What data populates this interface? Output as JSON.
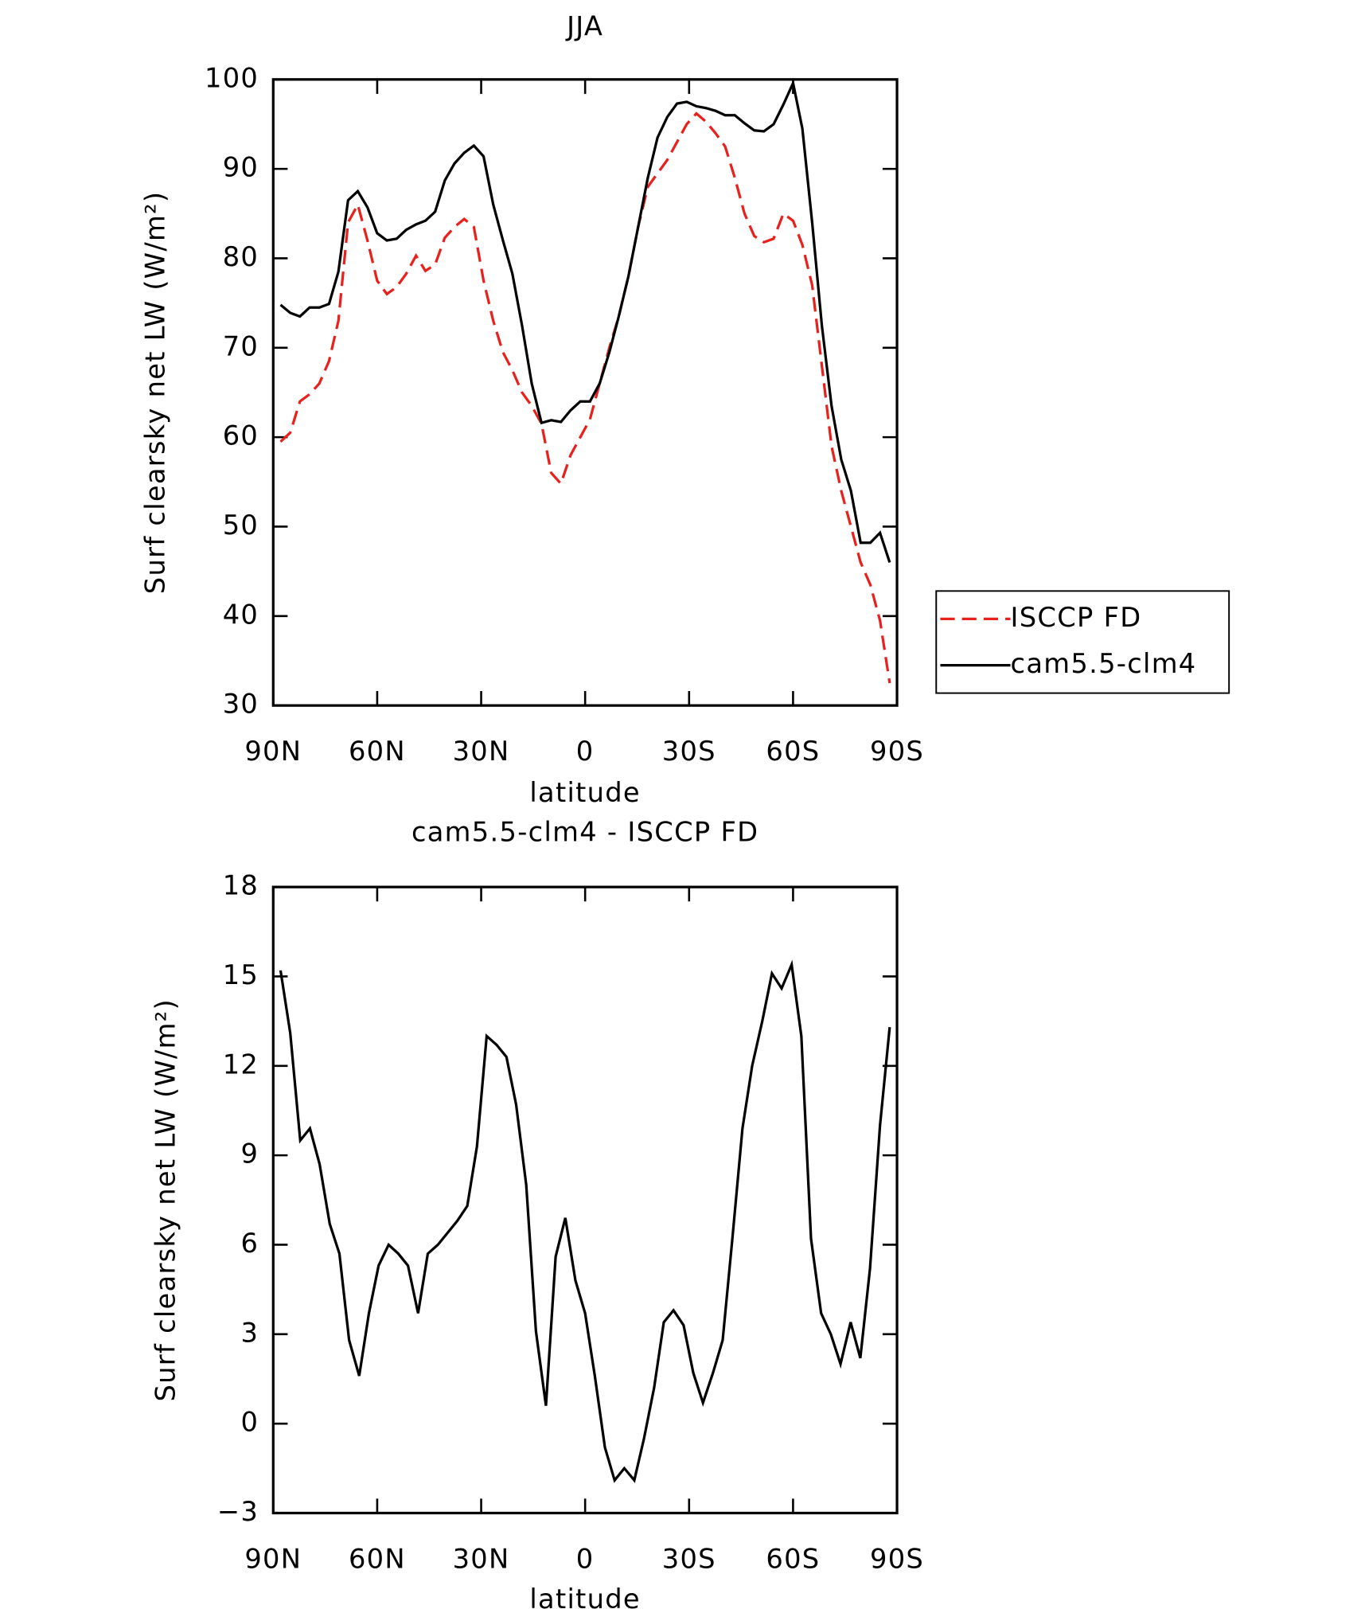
{
  "chart_data": [
    {
      "type": "line",
      "title": "JJA",
      "xlabel": "latitude",
      "ylabel": "Surf clearsky net LW (W/m²)",
      "xlim": [
        90,
        -90
      ],
      "xticks": [
        {
          "value": 90,
          "label": "90N"
        },
        {
          "value": 60,
          "label": "60N"
        },
        {
          "value": 30,
          "label": "30N"
        },
        0,
        {
          "value": -30,
          "label": "30S"
        },
        {
          "value": -60,
          "label": "60S"
        },
        {
          "value": -90,
          "label": "90S"
        }
      ],
      "ylim": [
        30,
        100
      ],
      "yticks": [
        30,
        40,
        50,
        60,
        70,
        80,
        90,
        100
      ],
      "legend": "outside-right",
      "x": [
        87.9,
        85.1,
        82.3,
        79.5,
        76.7,
        73.9,
        71.2,
        68.4,
        65.6,
        62.8,
        60.0,
        57.2,
        54.4,
        51.6,
        48.8,
        46.1,
        43.3,
        40.5,
        37.7,
        34.9,
        32.1,
        29.3,
        26.5,
        23.7,
        21.0,
        18.2,
        15.4,
        12.6,
        9.8,
        7.0,
        4.2,
        1.4,
        -1.4,
        -4.2,
        -7.0,
        -9.7,
        -12.5,
        -15.3,
        -18.1,
        -20.9,
        -23.7,
        -26.5,
        -29.3,
        -32.1,
        -34.8,
        -37.6,
        -40.4,
        -43.2,
        -46.0,
        -48.8,
        -51.6,
        -54.4,
        -57.2,
        -60.0,
        -62.7,
        -65.5,
        -68.3,
        -71.1,
        -73.9,
        -76.7,
        -79.5,
        -82.3,
        -85.1,
        -87.9
      ],
      "series": [
        {
          "name": "ISCCP FD",
          "color": "#e8211d",
          "dash": true,
          "values": [
            59.5,
            60.5,
            64,
            64.8,
            66,
            68.5,
            73,
            84,
            86,
            82,
            77.5,
            76,
            76.8,
            78.3,
            80.3,
            78.6,
            79.3,
            82.3,
            83.5,
            84.4,
            83.5,
            77.5,
            73,
            69.5,
            67.5,
            65,
            63.5,
            61.5,
            56,
            54.8,
            58,
            60,
            62,
            66,
            70,
            73.5,
            78,
            83.5,
            88,
            89.5,
            91,
            93,
            95,
            96.2,
            95.3,
            94,
            92.5,
            89,
            85,
            82.5,
            81.8,
            82.2,
            85,
            84.2,
            81.5,
            77,
            68,
            59,
            54,
            50,
            46,
            43.5,
            39.5,
            32.5
          ]
        },
        {
          "name": "cam5.5-clm4",
          "color": "#000000",
          "dash": false,
          "values": [
            74.8,
            73.9,
            73.5,
            74.5,
            74.5,
            74.9,
            78.5,
            86.5,
            87.5,
            85.7,
            82.8,
            82,
            82.2,
            83.2,
            83.8,
            84.2,
            85.2,
            88.7,
            90.6,
            91.8,
            92.6,
            91.4,
            86,
            82,
            78.3,
            72.5,
            66,
            61.6,
            61.9,
            61.7,
            63,
            64,
            64,
            66,
            69.5,
            73.5,
            78,
            83.5,
            89,
            93.5,
            95.8,
            97.3,
            97.5,
            97,
            96.8,
            96.5,
            96,
            96,
            95.1,
            94.3,
            94.2,
            95,
            97.2,
            99.6,
            94.5,
            84,
            72.5,
            63.5,
            57.5,
            54,
            48.2,
            48.2,
            49.3,
            46
          ]
        }
      ]
    },
    {
      "type": "line",
      "title": "cam5.5-clm4 - ISCCP FD",
      "xlabel": "latitude",
      "ylabel": "Surf clearsky net LW (W/m²)",
      "xlim": [
        90,
        -90
      ],
      "xticks": [
        {
          "value": 90,
          "label": "90N"
        },
        {
          "value": 60,
          "label": "60N"
        },
        {
          "value": 30,
          "label": "30N"
        },
        0,
        {
          "value": -30,
          "label": "30S"
        },
        {
          "value": -60,
          "label": "60S"
        },
        {
          "value": -90,
          "label": "90S"
        }
      ],
      "ylim": [
        -3,
        18
      ],
      "yticks": [
        {
          "value": -3,
          "label": "−3"
        },
        0,
        3,
        6,
        9,
        12,
        15,
        18
      ],
      "x": [
        87.9,
        85.1,
        82.2,
        79.4,
        76.6,
        73.7,
        70.9,
        68.1,
        65.2,
        62.4,
        59.6,
        56.7,
        53.9,
        51.1,
        48.2,
        45.4,
        42.5,
        39.7,
        36.9,
        34.0,
        31.2,
        28.4,
        25.5,
        22.7,
        19.9,
        17.0,
        14.2,
        11.3,
        8.5,
        5.7,
        2.8,
        0,
        -2.8,
        -5.7,
        -8.5,
        -11.3,
        -14.2,
        -17.0,
        -19.9,
        -22.7,
        -25.5,
        -28.4,
        -31.2,
        -34.0,
        -36.9,
        -39.7,
        -42.5,
        -45.4,
        -48.2,
        -51.1,
        -53.9,
        -56.7,
        -59.6,
        -62.4,
        -65.2,
        -68.1,
        -70.9,
        -73.7,
        -76.6,
        -79.4,
        -82.2,
        -85.1,
        -87.9
      ],
      "series": [
        {
          "color": "#000000",
          "dash": false,
          "values": [
            15.2,
            13.1,
            9.5,
            9.9,
            8.7,
            6.7,
            5.7,
            2.8,
            1.6,
            3.7,
            5.3,
            6.0,
            5.7,
            5.3,
            3.7,
            5.7,
            6.0,
            6.4,
            6.8,
            7.3,
            9.3,
            13,
            12.7,
            12.3,
            10.7,
            8,
            3.1,
            0.6,
            5.6,
            6.9,
            4.8,
            3.7,
            1.6,
            -0.8,
            -1.9,
            -1.5,
            -1.9,
            -0.5,
            1.2,
            3.4,
            3.8,
            3.3,
            1.7,
            0.7,
            1.7,
            2.8,
            6.2,
            9.9,
            12,
            13.5,
            15.1,
            14.6,
            15.4,
            13,
            6.2,
            3.7,
            3.0,
            2.0,
            3.4,
            2.2,
            5.2,
            10,
            13.3
          ]
        }
      ]
    }
  ]
}
